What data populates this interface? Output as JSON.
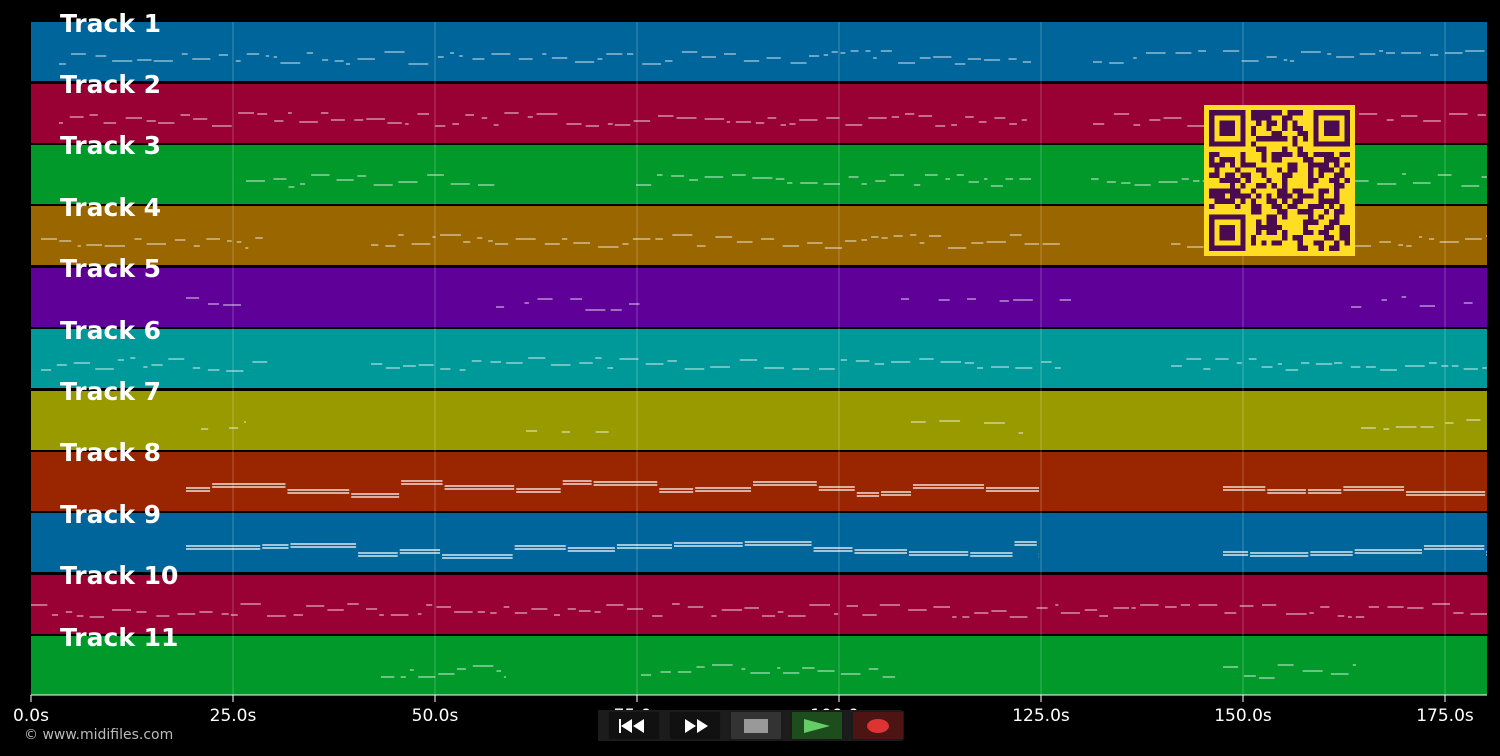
{
  "tracks": [
    {
      "label": "Track 1",
      "color": "#00659a"
    },
    {
      "label": "Track 2",
      "color": "#990033"
    },
    {
      "label": "Track 3",
      "color": "#00992a"
    },
    {
      "label": "Track 4",
      "color": "#996600"
    },
    {
      "label": "Track 5",
      "color": "#5f0099"
    },
    {
      "label": "Track 6",
      "color": "#009999"
    },
    {
      "label": "Track 7",
      "color": "#999900"
    },
    {
      "label": "Track 8",
      "color": "#992600"
    },
    {
      "label": "Track 9",
      "color": "#00659a"
    },
    {
      "label": "Track 10",
      "color": "#990033"
    },
    {
      "label": "Track 11",
      "color": "#00992a"
    }
  ],
  "timeline": {
    "ticks": [
      "0.0s",
      "25.0s",
      "50.0s",
      "75.0s",
      "100.0s",
      "125.0s",
      "150.0s",
      "175.0s"
    ]
  },
  "transport": {
    "rewind_icon": "rewind-icon",
    "forward_icon": "fast-forward-icon",
    "stop_icon": "stop-icon",
    "play_icon": "play-icon",
    "record_icon": "record-icon",
    "play_color": "#66cc66",
    "record_color": "#dd3333",
    "stop_color": "#999999"
  },
  "footer": {
    "copyright": "© www.midifiles.com"
  },
  "qr": {
    "fg": "#4a0b4f",
    "bg": "#ffdd22"
  }
}
